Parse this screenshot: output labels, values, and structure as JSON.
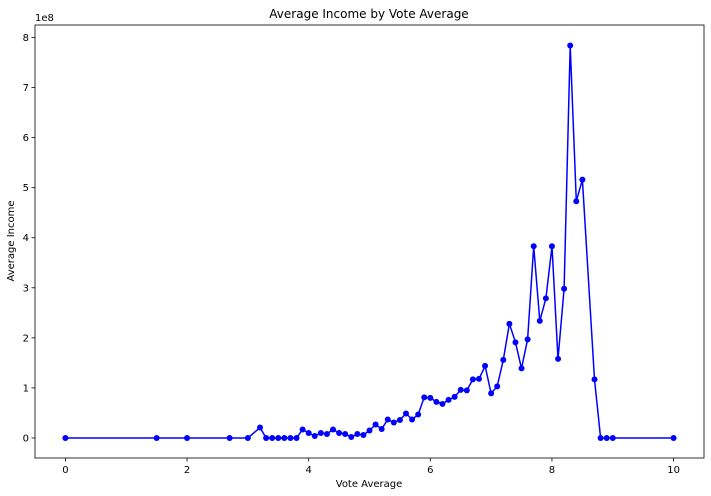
{
  "chart_data": {
    "type": "line",
    "title": "Average Income by Vote Average",
    "xlabel": "Vote Average",
    "ylabel": "Average Income",
    "y_offset_text": "1e8",
    "xlim": [
      -0.5,
      10.5
    ],
    "ylim": [
      -0.4,
      8.25
    ],
    "x_ticks": [
      0,
      2,
      4,
      6,
      8,
      10
    ],
    "y_ticks": [
      0,
      1,
      2,
      3,
      4,
      5,
      6,
      7,
      8
    ],
    "grid": false,
    "legend": "none",
    "series_color": "#0000ff",
    "marker": "circle",
    "x": [
      0,
      1.5,
      2,
      2.7,
      3,
      3.2,
      3.3,
      3.4,
      3.5,
      3.6,
      3.7,
      3.8,
      3.9,
      4.0,
      4.1,
      4.2,
      4.3,
      4.4,
      4.5,
      4.6,
      4.7,
      4.8,
      4.9,
      5.0,
      5.1,
      5.2,
      5.3,
      5.4,
      5.5,
      5.6,
      5.7,
      5.8,
      5.9,
      6.0,
      6.1,
      6.2,
      6.3,
      6.4,
      6.5,
      6.6,
      6.7,
      6.8,
      6.9,
      7.0,
      7.1,
      7.2,
      7.3,
      7.4,
      7.5,
      7.6,
      7.7,
      7.8,
      7.9,
      8.0,
      8.1,
      8.2,
      8.3,
      8.4,
      8.5,
      8.7,
      8.8,
      8.9,
      9.0,
      10.0
    ],
    "values": [
      0,
      0,
      0,
      0,
      0,
      0.21,
      0,
      0,
      0,
      0,
      0,
      0,
      0.17,
      0.1,
      0.04,
      0.1,
      0.08,
      0.17,
      0.1,
      0.08,
      0.02,
      0.08,
      0.06,
      0.15,
      0.27,
      0.18,
      0.37,
      0.31,
      0.36,
      0.49,
      0.37,
      0.47,
      0.81,
      0.8,
      0.72,
      0.68,
      0.76,
      0.82,
      0.96,
      0.95,
      1.17,
      1.18,
      1.44,
      0.89,
      1.03,
      1.56,
      2.28,
      1.91,
      1.39,
      1.97,
      3.83,
      2.34,
      2.79,
      3.83,
      1.58,
      2.98,
      7.84,
      4.73,
      5.16,
      1.17,
      0,
      0,
      0,
      0
    ]
  }
}
